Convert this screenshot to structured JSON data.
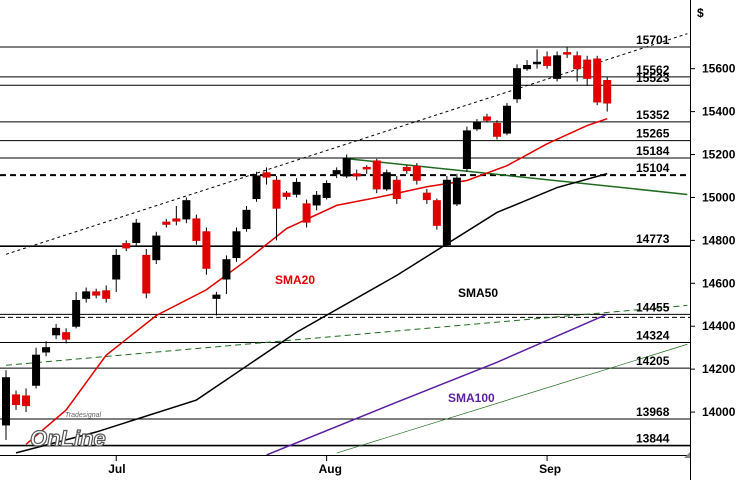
{
  "chart_data": {
    "type": "candlestick",
    "y_label": "$",
    "categories": [
      null,
      null,
      null,
      null,
      null,
      null,
      null,
      null,
      null,
      null,
      null,
      "Jul",
      null,
      null,
      null,
      null,
      null,
      null,
      null,
      null,
      null,
      null,
      null,
      null,
      null,
      null,
      null,
      null,
      null,
      null,
      null,
      null,
      "Aug",
      null,
      null,
      null,
      null,
      null,
      null,
      null,
      null,
      null,
      null,
      null,
      null,
      null,
      null,
      null,
      null,
      null,
      null,
      null,
      null,
      null,
      "Sep",
      null,
      null,
      null,
      null,
      null,
      null
    ],
    "open": [
      13940,
      14080,
      14075,
      14125,
      14280,
      14360,
      14370,
      14400,
      14530,
      14560,
      14565,
      14620,
      14785,
      14790,
      14730,
      14710,
      14885,
      14900,
      14900,
      14900,
      14840,
      14530,
      14620,
      14720,
      14855,
      14995,
      15115,
      15080,
      15020,
      15015,
      14970,
      14965,
      15000,
      15110,
      15100,
      15110,
      15140,
      15170,
      15040,
      15080,
      15140,
      15145,
      15020,
      14985,
      14780,
      14970,
      15135,
      15320,
      15375,
      15345,
      15300,
      15460,
      15600,
      15625,
      15655,
      15555,
      15675,
      15660,
      15640,
      15645,
      15545
    ],
    "high": [
      14195,
      14100,
      14110,
      14300,
      14330,
      14410,
      14390,
      14560,
      14580,
      14575,
      14590,
      14760,
      14800,
      14900,
      14760,
      14840,
      14900,
      14960,
      15000,
      14920,
      14860,
      14560,
      14730,
      14860,
      14960,
      15120,
      15140,
      15100,
      15030,
      15090,
      14990,
      15030,
      15080,
      15140,
      15200,
      15130,
      15150,
      15180,
      15130,
      15100,
      15150,
      15160,
      15040,
      14995,
      15100,
      15110,
      15330,
      15365,
      15390,
      15360,
      15440,
      15620,
      15640,
      15690,
      15680,
      15680,
      15700,
      15680,
      15660,
      15660,
      15560
    ],
    "low": [
      13870,
      14010,
      14000,
      14110,
      14260,
      14340,
      14320,
      14390,
      14510,
      14530,
      14510,
      14560,
      14750,
      14770,
      14530,
      14690,
      14860,
      14870,
      14880,
      14780,
      14640,
      14450,
      14550,
      14700,
      14840,
      14980,
      15060,
      14800,
      14990,
      15000,
      14860,
      14940,
      14990,
      15090,
      15090,
      15080,
      15110,
      15020,
      15030,
      14970,
      15110,
      15060,
      14970,
      14850,
      14770,
      14960,
      15120,
      15310,
      15350,
      15270,
      15290,
      15440,
      15590,
      15600,
      15600,
      15540,
      15650,
      15540,
      15520,
      15430,
      15400
    ],
    "close": [
      14160,
      14035,
      14030,
      14265,
      14300,
      14390,
      14340,
      14520,
      14560,
      14545,
      14530,
      14730,
      14765,
      14880,
      14555,
      14820,
      14875,
      14890,
      14985,
      14800,
      14670,
      14545,
      14710,
      14840,
      14940,
      15100,
      15095,
      14950,
      15005,
      15070,
      14885,
      15010,
      15065,
      15125,
      15180,
      15100,
      15135,
      15040,
      15115,
      14995,
      15125,
      15080,
      14990,
      14870,
      15080,
      15090,
      15310,
      15350,
      15360,
      15285,
      15425,
      15600,
      15615,
      15630,
      15615,
      15660,
      15670,
      15600,
      15555,
      15445,
      15440
    ],
    "up_color": "#000000",
    "down_color": "#e00000",
    "averages": [
      {
        "name": "SMA20",
        "color": "#e00000",
        "x": [
          2,
          6,
          10,
          15,
          20,
          24,
          28,
          33,
          38,
          42,
          46,
          50,
          54,
          58,
          60
        ],
        "values": [
          13850,
          14010,
          14265,
          14450,
          14570,
          14707,
          14855,
          14963,
          15009,
          15050,
          15079,
          15148,
          15250,
          15335,
          15367
        ]
      },
      {
        "name": "SMA50",
        "color": "#000000",
        "x": [
          1,
          9,
          19,
          29,
          39,
          49,
          55,
          60
        ],
        "values": [
          13810,
          13907,
          14056,
          14372,
          14637,
          14930,
          15046,
          15111
        ]
      },
      {
        "name": "SMA100",
        "color": "#5a1fa0",
        "x": [
          26,
          39,
          49,
          60
        ],
        "values": [
          13800,
          14046,
          14232,
          14456
        ]
      }
    ],
    "trendlines": [
      {
        "color": "#000000",
        "style": "dashed",
        "x": [
          0,
          68
        ],
        "values": [
          14735,
          15763
        ]
      },
      {
        "color": "#1e6b1e",
        "style": "solid",
        "x": [
          34,
          68
        ],
        "values": [
          15181,
          15014
        ]
      },
      {
        "color": "#1e6b1e",
        "style": "dashed",
        "x": [
          0,
          68
        ],
        "values": [
          14218,
          14497
        ]
      },
      {
        "color": "#1e6b1e",
        "style": "thin",
        "x": [
          33,
          68
        ],
        "values": [
          13809,
          14316
        ]
      }
    ],
    "levels": [
      {
        "value": 15701,
        "style": "solid"
      },
      {
        "value": 15562,
        "style": "solid"
      },
      {
        "value": 15523,
        "style": "solid"
      },
      {
        "value": 15352,
        "style": "solid"
      },
      {
        "value": 15265,
        "style": "solid"
      },
      {
        "value": 15184,
        "style": "solid"
      },
      {
        "value": 15104,
        "style": "dashed-bold"
      },
      {
        "value": 14773,
        "style": "bold"
      },
      {
        "value": 14455,
        "style": "double"
      },
      {
        "value": 14324,
        "style": "solid"
      },
      {
        "value": 14205,
        "style": "solid"
      },
      {
        "value": 13968,
        "style": "solid"
      },
      {
        "value": 13844,
        "style": "bold"
      }
    ],
    "ylim": [
      13800,
      15920
    ],
    "yticks": [
      14000,
      14200,
      14400,
      14600,
      14800,
      15000,
      15200,
      15400,
      15600
    ],
    "watermark": {
      "brand": "Tradesignal",
      "text": "OnLine"
    }
  }
}
